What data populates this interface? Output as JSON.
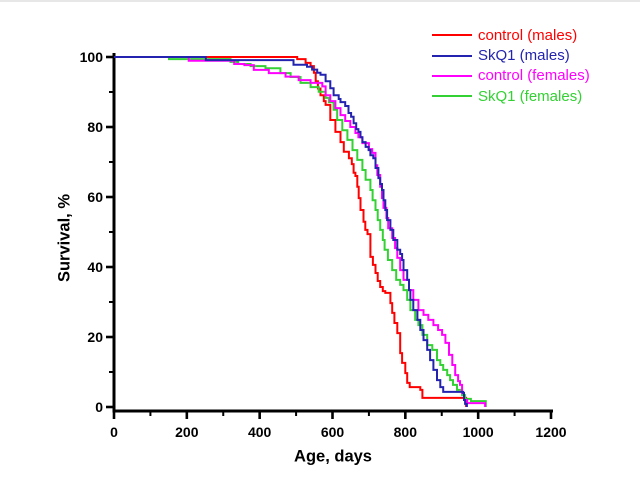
{
  "axes": {
    "x": {
      "label": "Age, days",
      "min": 0,
      "max": 1200,
      "major_ticks": [
        0,
        200,
        400,
        600,
        800,
        1000,
        1200
      ],
      "minor_step": 100
    },
    "y": {
      "label": "Survival, %",
      "min": 0,
      "max": 100,
      "major_ticks": [
        0,
        20,
        40,
        60,
        80,
        100
      ],
      "minor_step": 10
    }
  },
  "legend": {
    "position": "top-right"
  },
  "chart_data": {
    "type": "line",
    "subtype": "kaplan-meier-step-survival",
    "xlabel": "Age, days",
    "ylabel": "Survival, %",
    "xlim": [
      0,
      1200
    ],
    "ylim": [
      0,
      100
    ],
    "grid": false,
    "axis_color": "#000000",
    "series": [
      {
        "name": "control (males)",
        "color": "#ff0000",
        "points": [
          [
            0,
            100
          ],
          [
            490,
            100
          ],
          [
            503,
            99.4
          ],
          [
            526,
            98.3
          ],
          [
            540,
            97.4
          ],
          [
            549,
            95.5
          ],
          [
            554,
            93.1
          ],
          [
            560,
            91.0
          ],
          [
            567,
            89.1
          ],
          [
            576,
            87.4
          ],
          [
            581,
            86.3
          ],
          [
            594,
            82.0
          ],
          [
            608,
            78.6
          ],
          [
            622,
            75.7
          ],
          [
            631,
            72.9
          ],
          [
            645,
            71.1
          ],
          [
            653,
            69.4
          ],
          [
            658,
            66.9
          ],
          [
            663,
            66.0
          ],
          [
            668,
            62.9
          ],
          [
            672,
            59.7
          ],
          [
            677,
            56.3
          ],
          [
            685,
            52.9
          ],
          [
            690,
            50.6
          ],
          [
            696,
            49.4
          ],
          [
            704,
            42.9
          ],
          [
            711,
            40.6
          ],
          [
            718,
            38.3
          ],
          [
            724,
            36.0
          ],
          [
            731,
            34.3
          ],
          [
            738,
            33.1
          ],
          [
            745,
            32.6
          ],
          [
            759,
            29.7
          ],
          [
            764,
            26.9
          ],
          [
            770,
            24.0
          ],
          [
            778,
            21.1
          ],
          [
            786,
            15.4
          ],
          [
            791,
            12.6
          ],
          [
            800,
            9.7
          ],
          [
            805,
            6.9
          ],
          [
            812,
            5.7
          ],
          [
            841,
            4.9
          ],
          [
            847,
            2.6
          ],
          [
            966,
            2.6
          ],
          [
            967,
            0
          ]
        ]
      },
      {
        "name": "SkQ1 (males)",
        "color": "#2323b0",
        "points": [
          [
            0,
            100
          ],
          [
            252,
            99.1
          ],
          [
            493,
            97.8
          ],
          [
            530,
            97.2
          ],
          [
            544,
            96.4
          ],
          [
            558,
            95.5
          ],
          [
            567,
            94.9
          ],
          [
            581,
            93.1
          ],
          [
            594,
            91.1
          ],
          [
            603,
            89.1
          ],
          [
            617,
            88.0
          ],
          [
            622,
            87.1
          ],
          [
            635,
            86.0
          ],
          [
            644,
            84.0
          ],
          [
            651,
            82.9
          ],
          [
            658,
            81.1
          ],
          [
            665,
            79.4
          ],
          [
            671,
            78.6
          ],
          [
            677,
            77.1
          ],
          [
            682,
            75.7
          ],
          [
            691,
            74.3
          ],
          [
            699,
            73.4
          ],
          [
            704,
            71.9
          ],
          [
            712,
            71.1
          ],
          [
            718,
            68.3
          ],
          [
            726,
            65.4
          ],
          [
            731,
            63.7
          ],
          [
            736,
            62.0
          ],
          [
            740,
            59.1
          ],
          [
            745,
            56.3
          ],
          [
            750,
            53.4
          ],
          [
            759,
            50.6
          ],
          [
            767,
            47.7
          ],
          [
            778,
            44.9
          ],
          [
            786,
            43.7
          ],
          [
            791,
            42.0
          ],
          [
            795,
            39.1
          ],
          [
            805,
            36.3
          ],
          [
            810,
            33.4
          ],
          [
            814,
            30.6
          ],
          [
            822,
            27.7
          ],
          [
            833,
            24.9
          ],
          [
            841,
            22.0
          ],
          [
            850,
            19.1
          ],
          [
            860,
            16.3
          ],
          [
            868,
            13.4
          ],
          [
            877,
            10.6
          ],
          [
            887,
            7.7
          ],
          [
            896,
            5.7
          ],
          [
            904,
            4.3
          ],
          [
            959,
            4.0
          ],
          [
            961,
            2.0
          ],
          [
            964,
            0.9
          ],
          [
            969,
            0.9
          ],
          [
            969,
            0
          ]
        ]
      },
      {
        "name": "control (females)",
        "color": "#ff00ff",
        "points": [
          [
            0,
            100
          ],
          [
            205,
            98.9
          ],
          [
            330,
            98.0
          ],
          [
            358,
            97.7
          ],
          [
            384,
            96.3
          ],
          [
            425,
            95.4
          ],
          [
            471,
            94.4
          ],
          [
            507,
            93.4
          ],
          [
            540,
            92.6
          ],
          [
            572,
            91.6
          ],
          [
            581,
            89.1
          ],
          [
            594,
            87.4
          ],
          [
            608,
            85.4
          ],
          [
            622,
            83.4
          ],
          [
            635,
            81.7
          ],
          [
            649,
            80.0
          ],
          [
            663,
            78.3
          ],
          [
            671,
            77.1
          ],
          [
            682,
            75.4
          ],
          [
            700,
            73.7
          ],
          [
            709,
            72.6
          ],
          [
            718,
            69.1
          ],
          [
            723,
            66.3
          ],
          [
            731,
            62.9
          ],
          [
            736,
            59.7
          ],
          [
            740,
            56.9
          ],
          [
            748,
            54.0
          ],
          [
            753,
            51.1
          ],
          [
            764,
            48.3
          ],
          [
            772,
            45.4
          ],
          [
            778,
            42.6
          ],
          [
            786,
            39.1
          ],
          [
            795,
            36.3
          ],
          [
            810,
            33.4
          ],
          [
            822,
            30.6
          ],
          [
            836,
            27.7
          ],
          [
            850,
            26.3
          ],
          [
            863,
            24.9
          ],
          [
            877,
            23.4
          ],
          [
            890,
            22.0
          ],
          [
            901,
            20.6
          ],
          [
            910,
            18.3
          ],
          [
            920,
            14.9
          ],
          [
            929,
            12.0
          ],
          [
            937,
            9.1
          ],
          [
            945,
            7.4
          ],
          [
            950,
            6.3
          ],
          [
            956,
            4.0
          ],
          [
            961,
            2.0
          ],
          [
            970,
            1.1
          ],
          [
            1019,
            1.1
          ],
          [
            1019,
            0
          ]
        ]
      },
      {
        "name": "SkQ1 (females)",
        "color": "#33d133",
        "points": [
          [
            0,
            100
          ],
          [
            151,
            99.4
          ],
          [
            320,
            98.6
          ],
          [
            341,
            98.0
          ],
          [
            375,
            97.4
          ],
          [
            416,
            96.8
          ],
          [
            457,
            95.4
          ],
          [
            485,
            94.3
          ],
          [
            512,
            92.6
          ],
          [
            540,
            91.4
          ],
          [
            562,
            90.1
          ],
          [
            581,
            88.3
          ],
          [
            590,
            87.1
          ],
          [
            603,
            84.9
          ],
          [
            613,
            82.0
          ],
          [
            627,
            79.1
          ],
          [
            641,
            76.3
          ],
          [
            655,
            73.4
          ],
          [
            668,
            70.6
          ],
          [
            682,
            67.7
          ],
          [
            691,
            64.9
          ],
          [
            704,
            62.0
          ],
          [
            710,
            59.1
          ],
          [
            718,
            56.3
          ],
          [
            724,
            53.4
          ],
          [
            731,
            50.6
          ],
          [
            738,
            47.7
          ],
          [
            743,
            44.9
          ],
          [
            752,
            42.0
          ],
          [
            764,
            39.1
          ],
          [
            775,
            36.3
          ],
          [
            786,
            34.9
          ],
          [
            795,
            33.4
          ],
          [
            805,
            30.6
          ],
          [
            814,
            27.7
          ],
          [
            827,
            24.9
          ],
          [
            836,
            23.4
          ],
          [
            847,
            20.6
          ],
          [
            860,
            17.7
          ],
          [
            874,
            16.3
          ],
          [
            887,
            13.4
          ],
          [
            896,
            12.0
          ],
          [
            904,
            10.6
          ],
          [
            915,
            9.1
          ],
          [
            923,
            7.7
          ],
          [
            931,
            6.3
          ],
          [
            942,
            4.9
          ],
          [
            956,
            3.4
          ],
          [
            964,
            2.3
          ],
          [
            980,
            1.7
          ],
          [
            1020,
            1.7
          ],
          [
            1021,
            0
          ]
        ]
      }
    ]
  }
}
